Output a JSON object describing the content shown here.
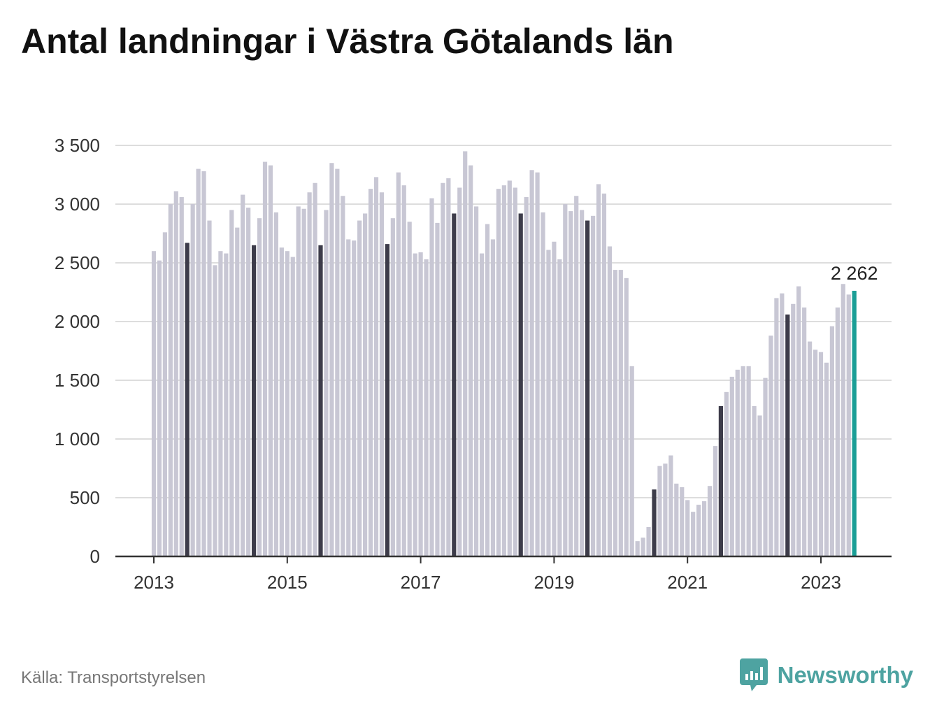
{
  "title": "Antal landningar i Västra Götalands län",
  "source": "Källa: Transportstyrelsen",
  "logo_text": "Newsworthy",
  "colors": {
    "bar": "#c8c7d4",
    "bar_july": "#3d3c4a",
    "bar_latest": "#1a9e96",
    "grid": "#dddddd",
    "axis": "#333333",
    "brand": "#4ea3a1"
  },
  "chart_data": {
    "type": "bar",
    "title": "Antal landningar i Västra Götalands län",
    "start": "2013-01",
    "frequency": "monthly",
    "highlight": "july",
    "latest_label": "2 262",
    "values": [
      2600,
      2520,
      2760,
      3000,
      3110,
      3060,
      2670,
      3000,
      3300,
      3280,
      2860,
      2480,
      2600,
      2580,
      2950,
      2800,
      3080,
      2970,
      2650,
      2880,
      3360,
      3330,
      2930,
      2630,
      2600,
      2550,
      2980,
      2960,
      3100,
      3180,
      2650,
      2950,
      3350,
      3300,
      3070,
      2700,
      2690,
      2860,
      2920,
      3130,
      3230,
      3100,
      2660,
      2880,
      3270,
      3160,
      2850,
      2580,
      2590,
      2530,
      3050,
      2840,
      3180,
      3220,
      2920,
      3140,
      3450,
      3330,
      2980,
      2580,
      2830,
      2700,
      3130,
      3160,
      3200,
      3140,
      2920,
      3060,
      3290,
      3270,
      2930,
      2610,
      2680,
      2530,
      3000,
      2940,
      3070,
      2950,
      2860,
      2900,
      3170,
      3090,
      2640,
      2440,
      2440,
      2370,
      1620,
      130,
      160,
      250,
      570,
      770,
      790,
      860,
      620,
      590,
      480,
      380,
      440,
      470,
      600,
      940,
      1280,
      1400,
      1530,
      1590,
      1620,
      1620,
      1280,
      1200,
      1520,
      1880,
      2200,
      2240,
      2060,
      2150,
      2300,
      2120,
      1830,
      1760,
      1740,
      1650,
      1960,
      2120,
      2320,
      2230,
      2262
    ],
    "xticks": [
      "2013",
      "2015",
      "2017",
      "2019",
      "2021",
      "2023"
    ],
    "yticks": [
      "0",
      "500",
      "1 000",
      "1 500",
      "2 000",
      "2 500",
      "3 000",
      "3 500"
    ],
    "ylim": [
      0,
      3500
    ],
    "grid": true,
    "legend": "none"
  }
}
